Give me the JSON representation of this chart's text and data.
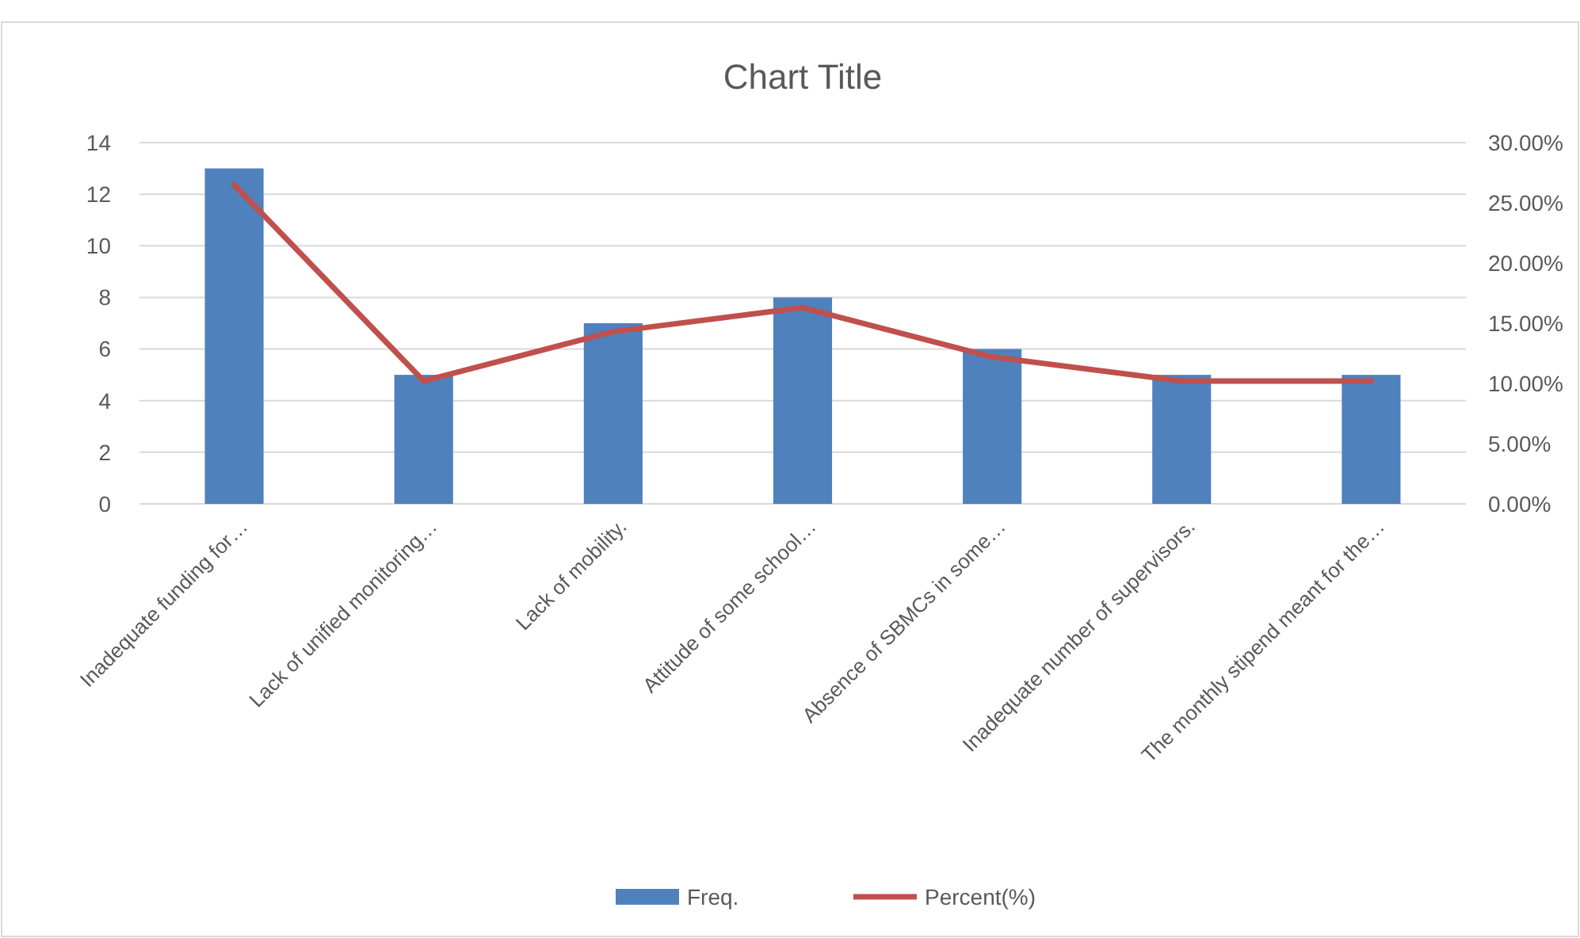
{
  "chart_data": {
    "type": "bar",
    "title": "Chart Title",
    "categories": [
      "Inadequate funding for…",
      "Lack of unified monitoring…",
      "Lack of mobility.",
      "Attitude of some school…",
      "Absence of SBMCs in some…",
      "Inadequate number of supervisors.",
      "The monthly stipend meant for the…"
    ],
    "series": [
      {
        "name": "Freq.",
        "color": "#4f81bd",
        "values": [
          13,
          5,
          7,
          8,
          6,
          5,
          5
        ]
      },
      {
        "name": "Percent(%)",
        "type": "line",
        "axis": "y2",
        "color": "#c0504d",
        "values": [
          26.5,
          10.2,
          14.3,
          16.3,
          12.2,
          10.2,
          10.2
        ]
      }
    ],
    "ylim": [
      0,
      14
    ],
    "yticks": [
      0,
      2,
      4,
      6,
      8,
      10,
      12,
      14
    ],
    "y2lim": [
      0,
      30
    ],
    "y2ticks": [
      {
        "value": 0,
        "label": "0.00%"
      },
      {
        "value": 5,
        "label": "5.00%"
      },
      {
        "value": 10,
        "label": "10.00%"
      },
      {
        "value": 15,
        "label": "15.00%"
      },
      {
        "value": 20,
        "label": "20.00%"
      },
      {
        "value": 25,
        "label": "25.00%"
      },
      {
        "value": 30,
        "label": "30.00%"
      }
    ],
    "grid": "y",
    "legend": "bottom",
    "marker": "none",
    "line_style": "solid"
  }
}
